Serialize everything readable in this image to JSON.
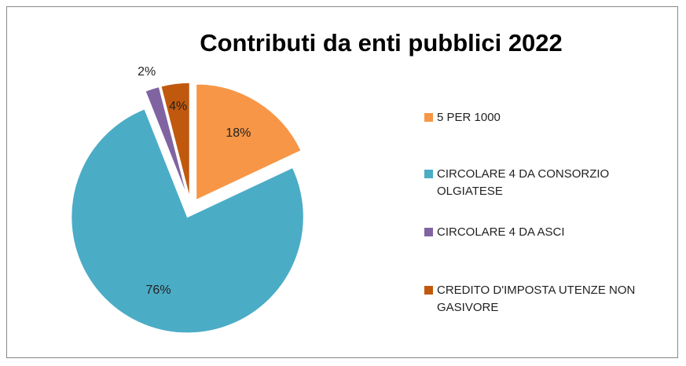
{
  "chart_data": {
    "type": "pie",
    "title": "Contributi da enti pubblici  2022",
    "categories": [
      "5 PER 1000",
      "CIRCOLARE 4 DA CONSORZIO OLGIATESE",
      "CIRCOLARE 4 DA ASCI",
      "CREDITO D'IMPOSTA UTENZE NON GASIVORE"
    ],
    "values": [
      18,
      76,
      2,
      4
    ],
    "value_labels": [
      "18%",
      "76%",
      "2%",
      "4%"
    ],
    "colors": [
      "#f79646",
      "#4bacc6",
      "#8064a2",
      "#c0590e"
    ],
    "legend": "right"
  }
}
